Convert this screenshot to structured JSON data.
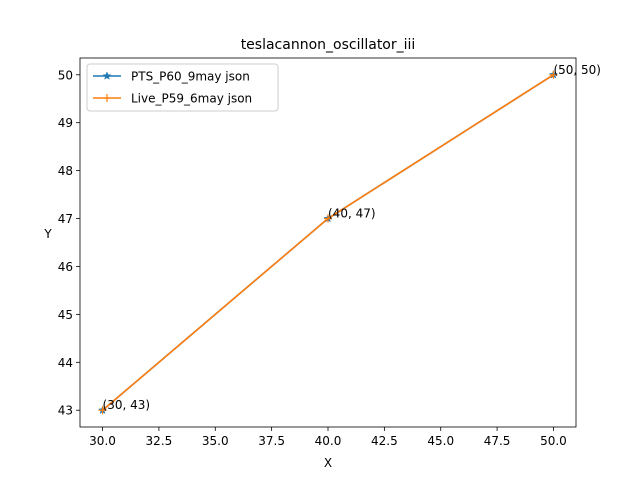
{
  "chart_data": {
    "type": "line",
    "title": "teslacannon_oscillator_iii",
    "xlabel": "X",
    "ylabel": "Y",
    "xlim": [
      29.0,
      51.0
    ],
    "ylim": [
      42.65,
      50.35
    ],
    "xticks": [
      30.0,
      32.5,
      35.0,
      37.5,
      40.0,
      42.5,
      45.0,
      47.5,
      50.0
    ],
    "xtick_labels": [
      "30.0",
      "32.5",
      "35.0",
      "37.5",
      "40.0",
      "42.5",
      "45.0",
      "47.5",
      "50.0"
    ],
    "yticks": [
      43,
      44,
      45,
      46,
      47,
      48,
      49,
      50
    ],
    "ytick_labels": [
      "43",
      "44",
      "45",
      "46",
      "47",
      "48",
      "49",
      "50"
    ],
    "grid": false,
    "legend_position": "top-left",
    "series": [
      {
        "name": "PTS_P60_9may json",
        "color": "#1f77b4",
        "marker": "star",
        "x": [
          30,
          40,
          50
        ],
        "y": [
          43,
          47,
          50
        ]
      },
      {
        "name": "Live_P59_6may json",
        "color": "#ff7f0e",
        "marker": "plus",
        "x": [
          30,
          40,
          50
        ],
        "y": [
          43,
          47,
          50
        ]
      }
    ],
    "annotations": [
      {
        "text": "(30, 43)",
        "x": 30,
        "y": 43
      },
      {
        "text": "(40, 47)",
        "x": 40,
        "y": 47
      },
      {
        "text": "(50, 50)",
        "x": 50,
        "y": 50
      }
    ]
  }
}
